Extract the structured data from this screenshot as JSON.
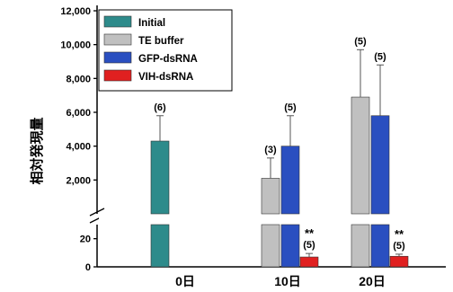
{
  "chart_data": {
    "type": "bar",
    "ylabel": "相対発現量",
    "categories": [
      "0日",
      "10日",
      "20日"
    ],
    "upper_axis": {
      "range": [
        0,
        12000
      ],
      "ticks": [
        "12,000",
        "10,000",
        "8,000",
        "6,000",
        "4,000",
        "2,000"
      ]
    },
    "lower_axis": {
      "range": [
        0,
        30
      ],
      "ticks": [
        "20",
        "0"
      ]
    },
    "axis_break": true,
    "legend_position": "top-left",
    "series": [
      {
        "name": "Initial",
        "color": "#2e8b8b",
        "values": [
          4300,
          null,
          null
        ],
        "errors": [
          1500,
          null,
          null
        ],
        "n_labels": [
          "(6)",
          null,
          null
        ],
        "sig": [
          null,
          null,
          null
        ]
      },
      {
        "name": "TE buffer",
        "color": "#c0c0c0",
        "values": [
          null,
          2100,
          6900
        ],
        "errors": [
          null,
          1200,
          2800
        ],
        "n_labels": [
          null,
          "(3)",
          "(5)"
        ],
        "sig": [
          null,
          null,
          null
        ]
      },
      {
        "name": "GFP-dsRNA",
        "color": "#2a4fc0",
        "values": [
          null,
          4000,
          5800
        ],
        "errors": [
          null,
          1800,
          3000
        ],
        "n_labels": [
          null,
          "(5)",
          "(5)"
        ],
        "sig": [
          null,
          null,
          null
        ]
      },
      {
        "name": "VIH-dsRNA",
        "color": "#e02020",
        "values": [
          null,
          7,
          7.5
        ],
        "errors": [
          null,
          2.5,
          1.5
        ],
        "n_labels": [
          null,
          "(5)",
          "(5)"
        ],
        "sig": [
          null,
          "**",
          "**"
        ]
      }
    ]
  }
}
